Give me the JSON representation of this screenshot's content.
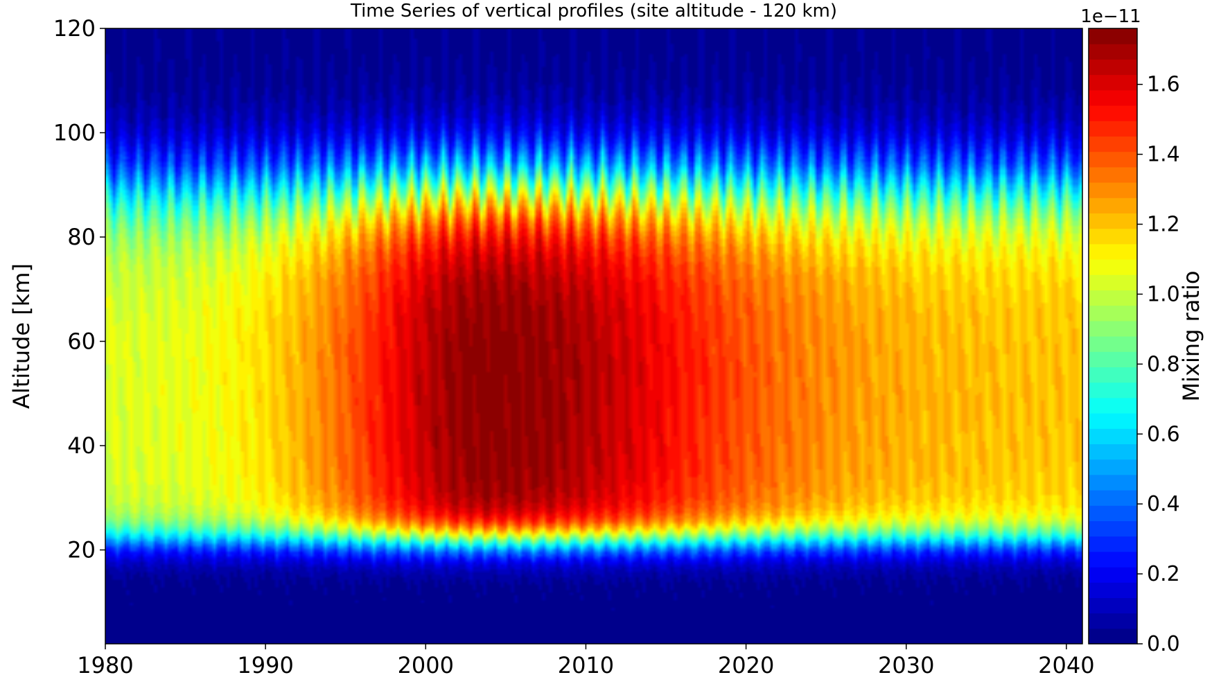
{
  "chart_data": {
    "type": "heatmap",
    "subtype": "filled-contour",
    "title": "Time Series of vertical profiles (site altitude - 120 km)",
    "xlabel": "",
    "ylabel": "Altitude [km]",
    "x_ticks": [
      "1980",
      "1990",
      "2000",
      "2010",
      "2020",
      "2030",
      "2040"
    ],
    "y_ticks": [
      "20",
      "40",
      "60",
      "80",
      "100",
      "120"
    ],
    "xlim": [
      1980,
      2041
    ],
    "ylim": [
      2,
      120
    ],
    "x_unit": "year",
    "y_unit": "km",
    "colorbar": {
      "label": "Mixing ratio",
      "scale_text": "1e−11",
      "ticks": [
        "0.0",
        "0.2",
        "0.4",
        "0.6",
        "0.8",
        "1.0",
        "1.2",
        "1.4",
        "1.6"
      ],
      "tick_values": [
        0.0,
        0.2,
        0.4,
        0.6,
        0.8,
        1.0,
        1.2,
        1.4,
        1.6
      ],
      "range": [
        0.0,
        1.76
      ],
      "colormap": "jet",
      "levels": 40
    },
    "grid": false,
    "legend": "none",
    "seasonal_oscillation": true,
    "field_description": {
      "peak_value": 1.75,
      "peak_year": 2004,
      "peak_altitude_km": [
        30,
        75
      ],
      "low_below_altitude_km": 20,
      "low_above_altitude_km": 100
    }
  }
}
